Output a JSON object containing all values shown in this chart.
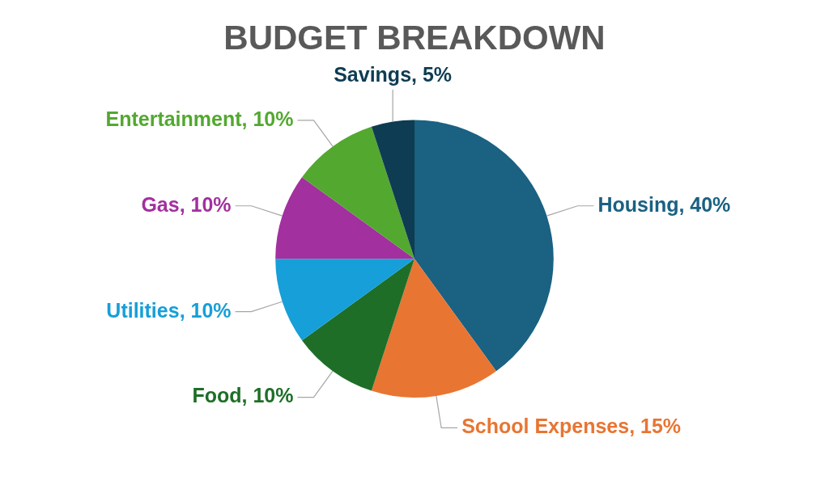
{
  "chart_data": {
    "type": "pie",
    "title": "BUDGET BREAKDOWN",
    "categories": [
      "Housing",
      "School Expenses",
      "Food",
      "Utilities",
      "Gas",
      "Entertainment",
      "Savings"
    ],
    "values": [
      40,
      15,
      10,
      10,
      10,
      10,
      5
    ],
    "colors": [
      "#1a6182",
      "#e87532",
      "#1e6e27",
      "#169fd8",
      "#a2309f",
      "#53a830",
      "#0e3c52"
    ],
    "value_labels": [
      "40%",
      "15%",
      "10%",
      "10%",
      "10%",
      "10%",
      "5%"
    ]
  }
}
